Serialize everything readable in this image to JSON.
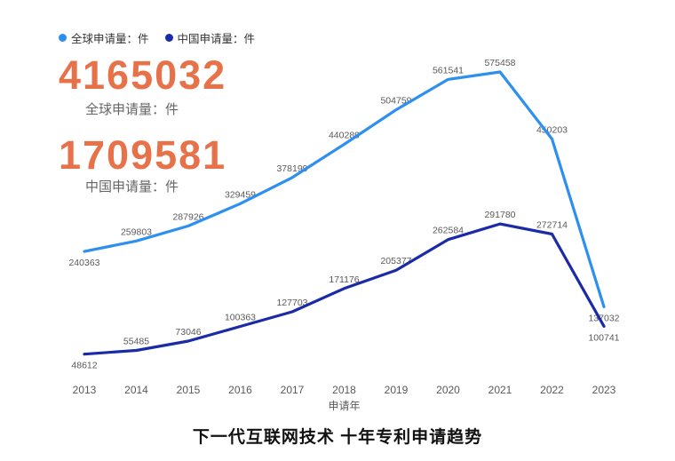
{
  "title": "下一代互联网技术 十年专利申请趋势",
  "stats": {
    "global": {
      "value": "4165032",
      "label": "全球申请量：件"
    },
    "china": {
      "value": "1709581",
      "label": "中国申请量：件"
    }
  },
  "colors": {
    "accent_orange": "#e7724a",
    "global_line": "#2d8ff0",
    "china_line": "#1b2ba8",
    "label_gray": "#595959"
  },
  "chart_data": {
    "type": "line",
    "x": [
      "2013",
      "2014",
      "2015",
      "2016",
      "2017",
      "2018",
      "2019",
      "2020",
      "2021",
      "2022",
      "2023"
    ],
    "xlabel": "申请年",
    "series": [
      {
        "name": "全球申请量：件",
        "color": "#2d8ff0",
        "values": [
          240363,
          259803,
          287926,
          329459,
          378199,
          440289,
          504759,
          561541,
          575458,
          450203,
          137032
        ]
      },
      {
        "name": "中国申请量：件",
        "color": "#1b2ba8",
        "values": [
          48612,
          55485,
          73046,
          100363,
          127703,
          171176,
          205377,
          262584,
          291780,
          272714,
          100741
        ]
      }
    ],
    "ylim": [
      0,
      597000
    ],
    "grid": false,
    "legend_position": "top-left",
    "data_labels": true
  }
}
